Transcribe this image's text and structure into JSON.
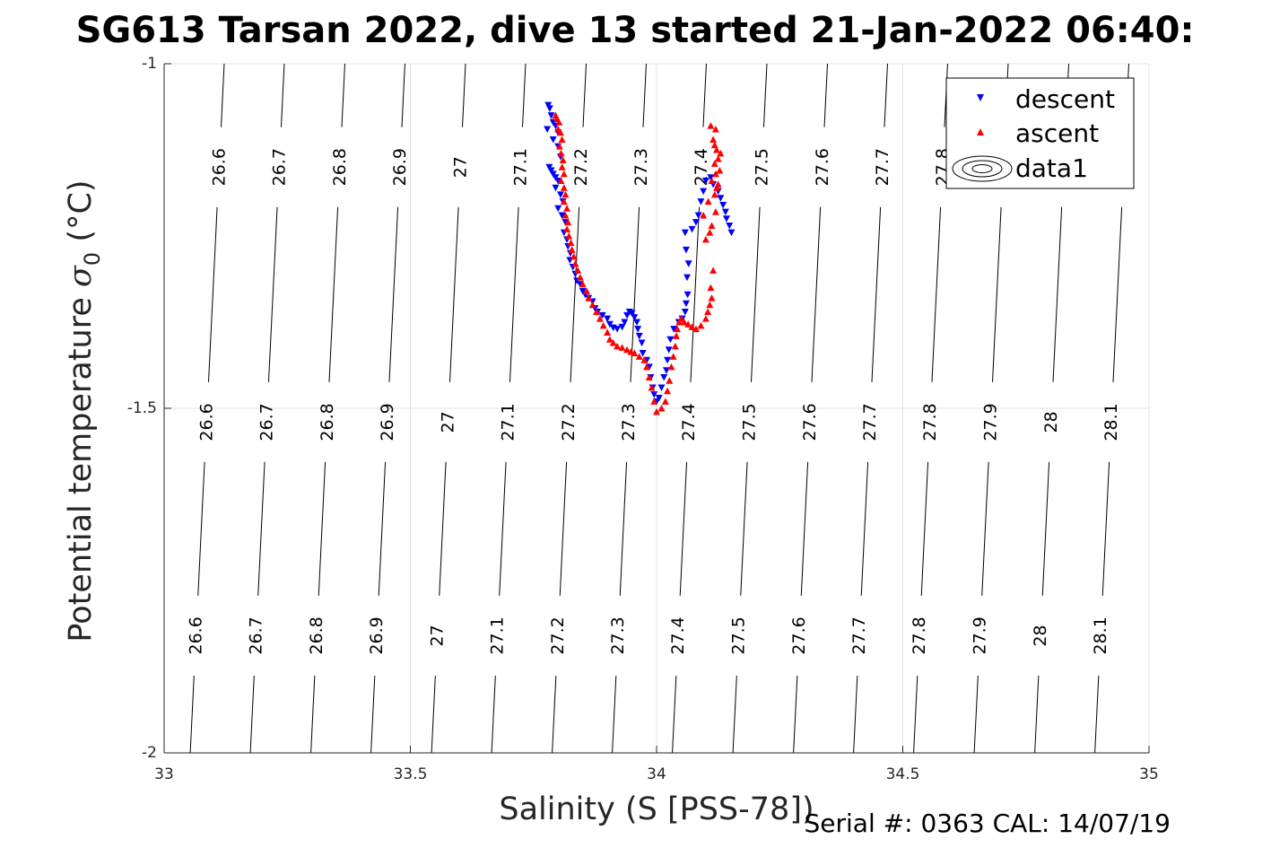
{
  "chart_data": {
    "type": "scatter",
    "title": "SG613 Tarsan 2022, dive 13 started 21-Jan-2022 06:40:",
    "xlabel": "Salinity (S [PSS-78])",
    "ylabel": "Potential temperature σ₀ (°C)",
    "ylabel_main": "Potential temperature ",
    "ylabel_sigma": "σ",
    "ylabel_sub": "0",
    "ylabel_unit": " (°C)",
    "xlim": [
      33,
      35
    ],
    "ylim": [
      -2,
      -1
    ],
    "xticks": [
      "33",
      "33.5",
      "34",
      "34.5",
      "35"
    ],
    "yticks": [
      "-1",
      "-1.5",
      "-2"
    ],
    "grid": true,
    "legend_position": "top-right",
    "colors": {
      "descent": "#0000ff",
      "ascent": "#ff0000",
      "contour": "#000000"
    },
    "legend": [
      "descent",
      "ascent",
      "data1"
    ],
    "contour_levels": [
      "26.6",
      "26.7",
      "26.8",
      "26.9",
      "27",
      "27.1",
      "27.2",
      "27.3",
      "27.4",
      "27.5",
      "27.6",
      "27.7",
      "27.8",
      "27.9",
      "28",
      "28.1"
    ],
    "series": [
      {
        "name": "descent",
        "marker": "triangle-down",
        "points": [
          [
            33.78,
            -1.06
          ],
          [
            33.783,
            -1.065
          ],
          [
            33.786,
            -1.075
          ],
          [
            33.79,
            -1.085
          ],
          [
            33.778,
            -1.095
          ],
          [
            33.795,
            -1.09
          ],
          [
            33.8,
            -1.1
          ],
          [
            33.79,
            -1.11
          ],
          [
            33.8,
            -1.12
          ],
          [
            33.805,
            -1.135
          ],
          [
            33.782,
            -1.15
          ],
          [
            33.786,
            -1.155
          ],
          [
            33.79,
            -1.16
          ],
          [
            33.795,
            -1.165
          ],
          [
            33.8,
            -1.17
          ],
          [
            33.795,
            -1.18
          ],
          [
            33.805,
            -1.19
          ],
          [
            33.81,
            -1.2
          ],
          [
            33.8,
            -1.21
          ],
          [
            33.808,
            -1.22
          ],
          [
            33.815,
            -1.23
          ],
          [
            33.812,
            -1.245
          ],
          [
            33.818,
            -1.255
          ],
          [
            33.82,
            -1.265
          ],
          [
            33.825,
            -1.275
          ],
          [
            33.824,
            -1.285
          ],
          [
            33.83,
            -1.295
          ],
          [
            33.835,
            -1.305
          ],
          [
            33.838,
            -1.315
          ],
          [
            33.845,
            -1.32
          ],
          [
            33.85,
            -1.33
          ],
          [
            33.855,
            -1.335
          ],
          [
            33.862,
            -1.34
          ],
          [
            33.87,
            -1.345
          ],
          [
            33.875,
            -1.355
          ],
          [
            33.88,
            -1.36
          ],
          [
            33.89,
            -1.365
          ],
          [
            33.9,
            -1.37
          ],
          [
            33.905,
            -1.378
          ],
          [
            33.912,
            -1.383
          ],
          [
            33.92,
            -1.385
          ],
          [
            33.93,
            -1.382
          ],
          [
            33.935,
            -1.375
          ],
          [
            33.94,
            -1.365
          ],
          [
            33.945,
            -1.36
          ],
          [
            33.95,
            -1.362
          ],
          [
            33.955,
            -1.368
          ],
          [
            33.96,
            -1.375
          ],
          [
            33.962,
            -1.385
          ],
          [
            33.965,
            -1.395
          ],
          [
            33.97,
            -1.405
          ],
          [
            33.972,
            -1.42
          ],
          [
            33.98,
            -1.43
          ],
          [
            33.985,
            -1.44
          ],
          [
            33.988,
            -1.455
          ],
          [
            33.992,
            -1.47
          ],
          [
            33.995,
            -1.48
          ],
          [
            34.0,
            -1.49
          ],
          [
            34.005,
            -1.485
          ],
          [
            34.01,
            -1.47
          ],
          [
            34.015,
            -1.455
          ],
          [
            34.02,
            -1.445
          ],
          [
            34.022,
            -1.43
          ],
          [
            34.025,
            -1.415
          ],
          [
            34.028,
            -1.4
          ],
          [
            34.035,
            -1.385
          ],
          [
            34.045,
            -1.375
          ],
          [
            34.052,
            -1.37
          ],
          [
            34.058,
            -1.36
          ],
          [
            34.06,
            -1.348
          ],
          [
            34.063,
            -1.335
          ],
          [
            34.062,
            -1.31
          ],
          [
            34.065,
            -1.29
          ],
          [
            34.06,
            -1.27
          ],
          [
            34.058,
            -1.245
          ],
          [
            34.072,
            -1.24
          ],
          [
            34.08,
            -1.23
          ],
          [
            34.085,
            -1.22
          ],
          [
            34.09,
            -1.2
          ],
          [
            34.095,
            -1.185
          ],
          [
            34.1,
            -1.17
          ],
          [
            34.11,
            -1.165
          ],
          [
            34.115,
            -1.175
          ],
          [
            34.125,
            -1.185
          ],
          [
            34.13,
            -1.195
          ],
          [
            34.135,
            -1.205
          ],
          [
            34.14,
            -1.215
          ],
          [
            34.142,
            -1.225
          ],
          [
            34.148,
            -1.235
          ],
          [
            34.152,
            -1.245
          ]
        ]
      },
      {
        "name": "ascent",
        "marker": "triangle-up",
        "points": [
          [
            33.795,
            -1.075
          ],
          [
            33.798,
            -1.08
          ],
          [
            33.802,
            -1.085
          ],
          [
            33.8,
            -1.095
          ],
          [
            33.805,
            -1.1
          ],
          [
            33.808,
            -1.11
          ],
          [
            33.803,
            -1.12
          ],
          [
            33.806,
            -1.13
          ],
          [
            33.81,
            -1.14
          ],
          [
            33.808,
            -1.15
          ],
          [
            33.812,
            -1.16
          ],
          [
            33.806,
            -1.17
          ],
          [
            33.812,
            -1.18
          ],
          [
            33.815,
            -1.19
          ],
          [
            33.812,
            -1.2
          ],
          [
            33.818,
            -1.21
          ],
          [
            33.815,
            -1.22
          ],
          [
            33.82,
            -1.23
          ],
          [
            33.818,
            -1.24
          ],
          [
            33.822,
            -1.25
          ],
          [
            33.826,
            -1.26
          ],
          [
            33.828,
            -1.27
          ],
          [
            33.832,
            -1.28
          ],
          [
            33.835,
            -1.29
          ],
          [
            33.84,
            -1.3
          ],
          [
            33.845,
            -1.31
          ],
          [
            33.85,
            -1.32
          ],
          [
            33.858,
            -1.33
          ],
          [
            33.862,
            -1.34
          ],
          [
            33.87,
            -1.35
          ],
          [
            33.878,
            -1.36
          ],
          [
            33.885,
            -1.37
          ],
          [
            33.892,
            -1.38
          ],
          [
            33.9,
            -1.39
          ],
          [
            33.905,
            -1.4
          ],
          [
            33.912,
            -1.405
          ],
          [
            33.92,
            -1.41
          ],
          [
            33.93,
            -1.412
          ],
          [
            33.94,
            -1.415
          ],
          [
            33.948,
            -1.418
          ],
          [
            33.955,
            -1.42
          ],
          [
            33.965,
            -1.425
          ],
          [
            33.975,
            -1.43
          ],
          [
            33.98,
            -1.44
          ],
          [
            33.985,
            -1.455
          ],
          [
            33.99,
            -1.47
          ],
          [
            33.995,
            -1.49
          ],
          [
            34.0,
            -1.505
          ],
          [
            34.01,
            -1.5
          ],
          [
            34.018,
            -1.49
          ],
          [
            34.022,
            -1.475
          ],
          [
            34.026,
            -1.46
          ],
          [
            34.03,
            -1.44
          ],
          [
            34.034,
            -1.425
          ],
          [
            34.038,
            -1.41
          ],
          [
            34.04,
            -1.395
          ],
          [
            34.042,
            -1.385
          ],
          [
            34.046,
            -1.375
          ],
          [
            34.05,
            -1.37
          ],
          [
            34.056,
            -1.375
          ],
          [
            34.064,
            -1.378
          ],
          [
            34.072,
            -1.382
          ],
          [
            34.08,
            -1.385
          ],
          [
            34.09,
            -1.38
          ],
          [
            34.1,
            -1.37
          ],
          [
            34.104,
            -1.36
          ],
          [
            34.108,
            -1.35
          ],
          [
            34.112,
            -1.34
          ],
          [
            34.11,
            -1.325
          ],
          [
            34.115,
            -1.3
          ],
          [
            34.1,
            -1.255
          ],
          [
            34.108,
            -1.245
          ],
          [
            34.112,
            -1.235
          ],
          [
            34.095,
            -1.22
          ],
          [
            34.12,
            -1.215
          ],
          [
            34.105,
            -1.2
          ],
          [
            34.118,
            -1.19
          ],
          [
            34.122,
            -1.18
          ],
          [
            34.125,
            -1.175
          ],
          [
            34.112,
            -1.17
          ],
          [
            34.12,
            -1.16
          ],
          [
            34.128,
            -1.155
          ],
          [
            34.118,
            -1.145
          ],
          [
            34.125,
            -1.138
          ],
          [
            34.13,
            -1.13
          ],
          [
            34.122,
            -1.125
          ],
          [
            34.118,
            -1.118
          ],
          [
            34.115,
            -1.11
          ],
          [
            34.12,
            -1.095
          ],
          [
            34.11,
            -1.09
          ]
        ]
      }
    ]
  },
  "footer": {
    "serial": "Serial #: 0363  CAL: 14/07/19"
  }
}
